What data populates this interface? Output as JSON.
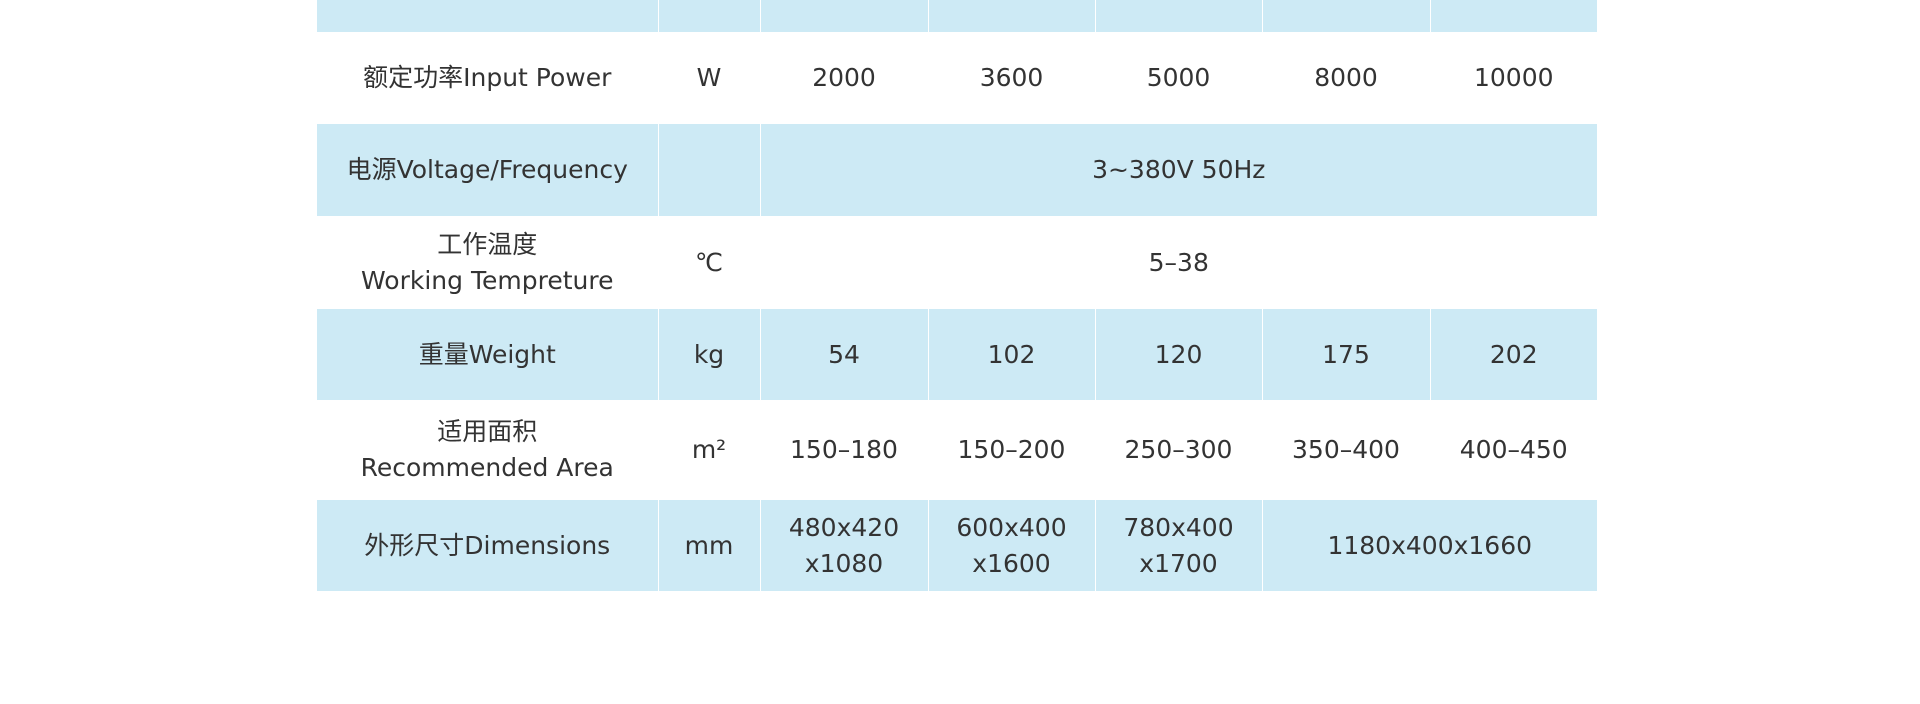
{
  "table": {
    "rows": [
      [
        "额定功率Input Power",
        "W",
        2000,
        3600,
        5000,
        8000,
        10000
      ],
      [
        "电源Voltage/Frequency",
        "3~380V 50Hz"
      ],
      [
        "工作温度\nWorking Tempreture",
        "℃",
        "5–38"
      ],
      [
        "重量Weight",
        "kg",
        54,
        102,
        120,
        175,
        202
      ],
      [
        "适用面积\nRecommended Area",
        "m²",
        "150–180",
        "150–200",
        "250–300",
        "350–400",
        "400–450"
      ],
      [
        "外形尺寸Dimensions",
        "mm",
        "480x420\nx1080",
        "600x400\nx1600",
        "780x400\nx1700",
        "1180x400x1660"
      ]
    ]
  }
}
